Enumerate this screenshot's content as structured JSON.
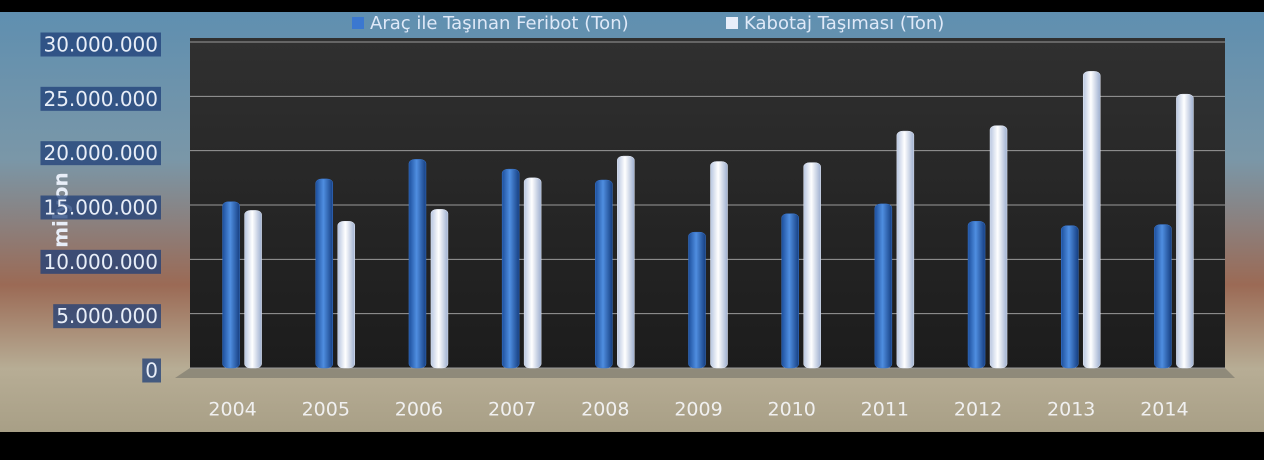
{
  "chart_data": {
    "type": "bar",
    "y_label": "milyon",
    "categories": [
      "2004",
      "2005",
      "2006",
      "2007",
      "2008",
      "2009",
      "2010",
      "2011",
      "2012",
      "2013",
      "2014"
    ],
    "series": [
      {
        "name": "Araç ile Taşınan Feribot (Ton)",
        "color": "#3b78d0",
        "values": [
          15300000,
          17400000,
          19200000,
          18300000,
          17300000,
          12500000,
          14200000,
          15100000,
          13500000,
          13100000,
          13200000
        ]
      },
      {
        "name": "Kabotaj Taşıması (Ton)",
        "color": "#e8eefa",
        "values": [
          14500000,
          13500000,
          14600000,
          17500000,
          19500000,
          19000000,
          18900000,
          21800000,
          22300000,
          27300000,
          25200000
        ]
      }
    ],
    "ylim": [
      0,
      30000000
    ],
    "yticks": [
      0,
      {
        "value": 5000000,
        "label": "5.000.000"
      },
      {
        "value": 10000000,
        "label": "10.000.000"
      },
      {
        "value": 15000000,
        "label": "15.000.000"
      },
      {
        "value": 20000000,
        "label": "20.000.000"
      },
      {
        "value": 25000000,
        "label": "25.000.000"
      },
      {
        "value": 30000000,
        "label": "30.000.000"
      }
    ],
    "grid": true
  }
}
